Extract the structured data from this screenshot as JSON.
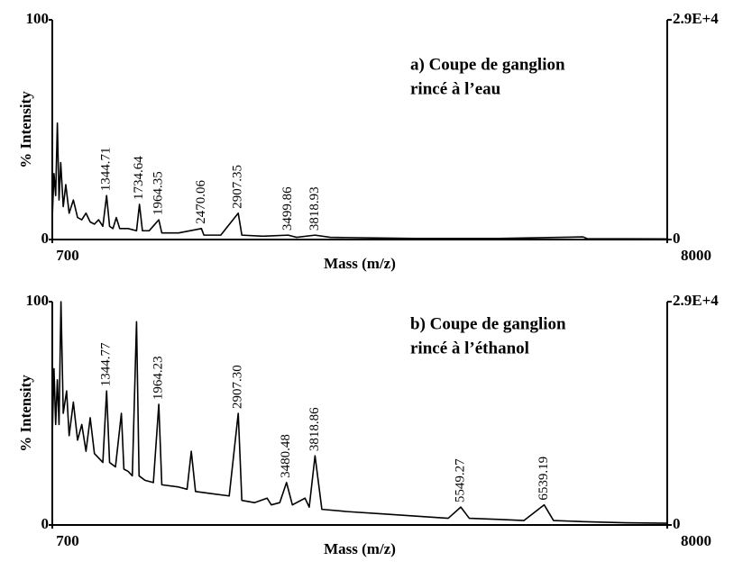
{
  "chart_data": [
    {
      "type": "line",
      "xlabel": "Mass (m/z)",
      "ylabel": "% Intensity",
      "annotations": [
        "a) Coupe de ganglion",
        "rincé à l’eau"
      ],
      "xlim": [
        700,
        8000
      ],
      "xticks": [
        700,
        8000
      ],
      "ylim": [
        0,
        100
      ],
      "yticks": [
        0,
        100
      ],
      "y2lim": [
        0,
        29000
      ],
      "y2ticks": [
        0,
        {
          "value": 29000,
          "label": "2.9E+4"
        }
      ],
      "grid": false,
      "series": [
        {
          "color": "#000000",
          "x": [
            700,
            720,
            740,
            760,
            780,
            800,
            830,
            860,
            900,
            950,
            1000,
            1050,
            1100,
            1150,
            1200,
            1250,
            1300,
            1344.71,
            1380,
            1420,
            1460,
            1500,
            1600,
            1700,
            1734.64,
            1770,
            1850,
            1964.35,
            2000,
            2200,
            2470.06,
            2500,
            2700,
            2907.35,
            2950,
            3200,
            3499.86,
            3600,
            3818.93,
            4000,
            5000,
            6000,
            7000,
            7050,
            8000
          ],
          "values": [
            10,
            30,
            20,
            53,
            18,
            35,
            15,
            25,
            12,
            18,
            10,
            9,
            12,
            8,
            7,
            9,
            6,
            20,
            6,
            5,
            10,
            5,
            5,
            4,
            16,
            4,
            4,
            9,
            3,
            3,
            5,
            2,
            2,
            12,
            2,
            1.5,
            2,
            1,
            2,
            1,
            0.5,
            0.5,
            1.2,
            0.4,
            0.3
          ],
          "point_labels": [
            null,
            null,
            null,
            null,
            null,
            null,
            null,
            null,
            null,
            null,
            null,
            null,
            null,
            null,
            null,
            null,
            null,
            "1344.71",
            null,
            null,
            null,
            null,
            null,
            null,
            "1734.64",
            null,
            null,
            "1964.35",
            null,
            null,
            "2470.06",
            null,
            null,
            "2907.35",
            null,
            null,
            "3499.86",
            null,
            "3818.93",
            null,
            null,
            null,
            null,
            null,
            null
          ]
        }
      ]
    },
    {
      "type": "line",
      "xlabel": "Mass (m/z)",
      "ylabel": "% Intensity",
      "annotations": [
        "b) Coupe de ganglion",
        "rincé à l’éthanol"
      ],
      "xlim": [
        700,
        8000
      ],
      "xticks": [
        700,
        8000
      ],
      "ylim": [
        0,
        100
      ],
      "yticks": [
        0,
        100
      ],
      "y2lim": [
        0,
        29000
      ],
      "y2ticks": [
        0,
        {
          "value": 29000,
          "label": "2.9E+4"
        }
      ],
      "grid": false,
      "series": [
        {
          "color": "#000000",
          "x": [
            700,
            720,
            740,
            760,
            780,
            803,
            830,
            870,
            900,
            950,
            1000,
            1050,
            1100,
            1150,
            1200,
            1250,
            1300,
            1344.77,
            1380,
            1450,
            1520,
            1550,
            1600,
            1650,
            1700,
            1730,
            1800,
            1900,
            1964.23,
            2000,
            2200,
            2300,
            2350,
            2400,
            2600,
            2800,
            2907.3,
            2950,
            3100,
            3250,
            3300,
            3400,
            3480.48,
            3550,
            3700,
            3750,
            3818.86,
            3900,
            4200,
            4600,
            5000,
            5400,
            5549.27,
            5650,
            6000,
            6300,
            6539.19,
            6650,
            7000,
            7500,
            8000
          ],
          "values": [
            40,
            70,
            45,
            65,
            45,
            100,
            50,
            60,
            40,
            55,
            38,
            45,
            33,
            48,
            32,
            30,
            28,
            60,
            28,
            26,
            50,
            25,
            24,
            22,
            91,
            22,
            20,
            19,
            54,
            18,
            17,
            16,
            33,
            15,
            14,
            13,
            50,
            11,
            10,
            12,
            9,
            10,
            19,
            9,
            12,
            8,
            31,
            7,
            6,
            5,
            4,
            3,
            8,
            3,
            2.5,
            2,
            9,
            2,
            1.5,
            1,
            0.8
          ],
          "point_labels": [
            null,
            null,
            null,
            null,
            null,
            null,
            null,
            null,
            null,
            null,
            null,
            null,
            null,
            null,
            null,
            null,
            null,
            "1344.77",
            null,
            null,
            null,
            null,
            null,
            null,
            null,
            null,
            null,
            null,
            "1964.23",
            null,
            null,
            null,
            null,
            null,
            null,
            null,
            "2907.30",
            null,
            null,
            null,
            null,
            null,
            "3480.48",
            null,
            null,
            null,
            "3818.86",
            null,
            null,
            null,
            null,
            null,
            "5549.27",
            null,
            null,
            null,
            "6539.19",
            null,
            null,
            null,
            null
          ]
        }
      ]
    }
  ]
}
